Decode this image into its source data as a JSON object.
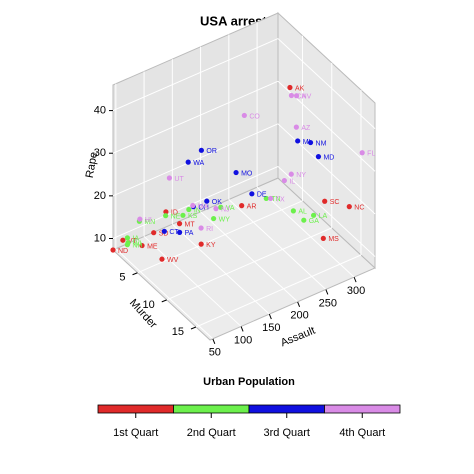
{
  "chart_data": {
    "type": "scatter3d",
    "title": "USA arrests",
    "xlabel": "Assault",
    "ylabel": "Murder",
    "zlabel": "Rape",
    "xlim": [
      45,
      337
    ],
    "ylim": [
      0.8,
      17.4
    ],
    "zlim": [
      7.3,
      46
    ],
    "xticks": [
      50,
      100,
      150,
      200,
      250,
      300
    ],
    "yticks": [
      5,
      10,
      15
    ],
    "zticks": [
      10,
      20,
      30,
      40
    ],
    "grid": true,
    "legend_title": "Urban Population",
    "legend": "bottom",
    "series": [
      {
        "name": "1st Quart",
        "color": "#e02a2a",
        "labels": [
          "AK",
          "NC",
          "SC",
          "MS",
          "ND",
          "WV",
          "ME",
          "VT",
          "MT",
          "KY",
          "SD",
          "AR",
          "ID"
        ],
        "x": [
          263,
          337,
          279,
          259,
          45,
          81,
          83,
          48,
          109,
          109,
          86,
          190,
          120
        ],
        "y": [
          10.0,
          13.0,
          14.4,
          16.1,
          0.8,
          5.7,
          2.1,
          2.2,
          6.0,
          9.7,
          3.8,
          8.8,
          2.6
        ],
        "z": [
          44.5,
          16.1,
          22.5,
          17.1,
          7.3,
          9.3,
          7.8,
          11.2,
          16.4,
          16.3,
          12.8,
          19.5,
          14.2
        ]
      },
      {
        "name": "2nd Quart",
        "color": "#6cf04c",
        "labels": [
          "AL",
          "VA",
          "MN",
          "IA",
          "WI",
          "NH",
          "GA",
          "LA",
          "TN",
          "IN",
          "KS",
          "NE",
          "WY"
        ],
        "x": [
          236,
          156,
          72,
          56,
          53,
          57,
          211,
          249,
          188,
          113,
          115,
          102,
          161
        ],
        "y": [
          13.2,
          8.5,
          2.7,
          2.2,
          2.6,
          2.1,
          17.4,
          15.4,
          13.2,
          7.2,
          6.0,
          4.3,
          6.8
        ],
        "z": [
          21.2,
          20.7,
          14.9,
          11.3,
          10.8,
          9.5,
          25.8,
          22.2,
          26.9,
          21.0,
          18.0,
          16.5,
          15.6
        ]
      },
      {
        "name": "3rd Quart",
        "color": "#1010e0",
        "labels": [
          "NM",
          "MI",
          "MD",
          "OR",
          "WA",
          "MO",
          "OK",
          "DE",
          "PA",
          "OH",
          "CT"
        ],
        "x": [
          285,
          255,
          300,
          159,
          145,
          178,
          151,
          238,
          106,
          120,
          110
        ],
        "y": [
          11.4,
          12.1,
          11.3,
          4.9,
          4.0,
          9.0,
          6.6,
          5.9,
          6.3,
          7.3,
          3.3
        ],
        "z": [
          32.1,
          35.1,
          27.8,
          29.3,
          26.2,
          28.2,
          20.0,
          15.8,
          14.9,
          21.4,
          11.1
        ]
      },
      {
        "name": "4th Quart",
        "color": "#d98be6",
        "labels": [
          "NV",
          "CA",
          "CO",
          "FL",
          "NY",
          "IL",
          "UT",
          "HI",
          "MA",
          "RI",
          "NJ",
          "TX",
          "AZ"
        ],
        "x": [
          252,
          276,
          204,
          335,
          254,
          249,
          120,
          46,
          149,
          174,
          159,
          201,
          294
        ],
        "y": [
          12.2,
          9.0,
          7.9,
          15.4,
          11.1,
          10.4,
          3.2,
          5.3,
          4.4,
          3.4,
          7.4,
          12.7,
          8.1
        ],
        "z": [
          46.0,
          40.6,
          38.7,
          31.9,
          26.1,
          24.0,
          22.9,
          20.2,
          16.3,
          8.3,
          18.8,
          25.5,
          31.0
        ]
      }
    ]
  }
}
